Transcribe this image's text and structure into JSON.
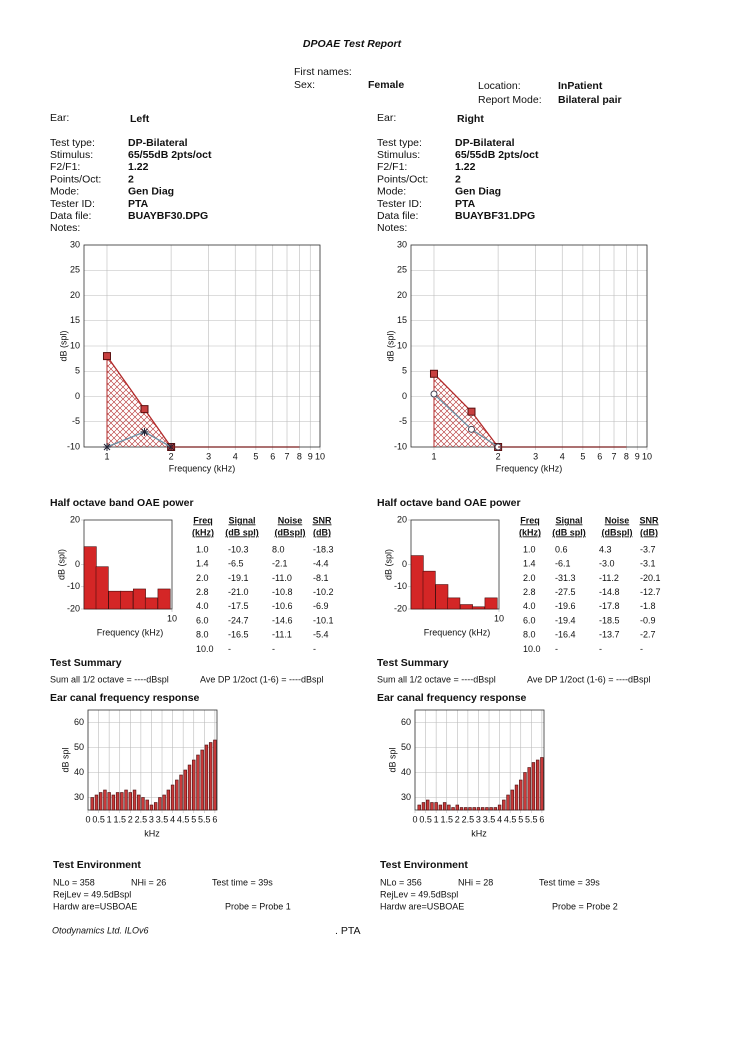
{
  "header": {
    "title": "DPOAE Test Report",
    "first_names_label": "First names:",
    "sex_label": "Sex:",
    "sex": "Female",
    "location_label": "Location:",
    "location": "InPatient",
    "report_mode_label": "Report Mode:",
    "report_mode": "Bilateral pair"
  },
  "ears": [
    {
      "ear_label": "Ear:",
      "ear": "Left",
      "ear_color": "#2e5a8a",
      "fields": [
        {
          "label": "Test type:",
          "value": "DP-Bilateral"
        },
        {
          "label": "Stimulus:",
          "value": "65/55dB  2pts/oct"
        },
        {
          "label": "F2/F1:",
          "value": "1.22"
        },
        {
          "label": "Points/Oct:",
          "value": "2"
        },
        {
          "label": "Mode:",
          "value": "Gen Diag"
        },
        {
          "label": "Tester ID:",
          "value": "PTA"
        },
        {
          "label": "Data file:",
          "value": "BUAYBF30.DPG"
        }
      ],
      "notes_label": "Notes:",
      "dpgram": {
        "type": "line",
        "x_label": "Frequency (kHz)",
        "y_label": "dB (spl)",
        "log_x": true,
        "grid": true,
        "xlim": [
          0.78,
          10
        ],
        "xticks": [
          1,
          2,
          3,
          4,
          5,
          6,
          7,
          8,
          9,
          10
        ],
        "ylim": [
          -10,
          30
        ],
        "yticks": [
          -10,
          -5,
          0,
          5,
          10,
          15,
          20,
          25,
          30
        ],
        "series": [
          {
            "color": "#b22a2a",
            "fill": "hatch",
            "marker": "square",
            "x": [
              1,
              1.5,
              2
            ],
            "values": [
              8,
              -2.5,
              -10
            ]
          },
          {
            "color": "#6d8fa3",
            "marker": "asterisk",
            "x": [
              1,
              1.5,
              2
            ],
            "values": [
              -10,
              -7,
              -10
            ]
          },
          {
            "color": "#7a1c1c",
            "marker": "none",
            "x": [
              2,
              8
            ],
            "values": [
              -10,
              -10
            ]
          }
        ]
      },
      "half_octave": {
        "title": "Half octave band OAE power",
        "chart": {
          "type": "bar",
          "x_label": "Frequency (kHz)",
          "y_label": "dB (spl)",
          "log_x": true,
          "color": "#d42626",
          "xlim": [
            0.84,
            10
          ],
          "xticks": [
            10
          ],
          "ylim": [
            -20,
            20
          ],
          "yticks": [
            -20,
            -10,
            0,
            20
          ],
          "x": [
            1,
            1.4,
            2,
            2.8,
            4,
            5.6,
            8
          ],
          "values": [
            8,
            -1,
            -12,
            -12,
            -11,
            -15,
            -11
          ]
        },
        "table": {
          "headers": [
            [
              "Freq",
              "(kHz)"
            ],
            [
              "Signal",
              "(dB spl)"
            ],
            [
              "Noise",
              "(dBspl)"
            ],
            [
              "SNR",
              "(dB)"
            ]
          ],
          "rows": [
            [
              "1.0",
              "-10.3",
              "8.0",
              "-18.3"
            ],
            [
              "1.4",
              "-6.5",
              "-2.1",
              "-4.4"
            ],
            [
              "2.0",
              "-19.1",
              "-11.0",
              "-8.1"
            ],
            [
              "2.8",
              "-21.0",
              "-10.8",
              "-10.2"
            ],
            [
              "4.0",
              "-17.5",
              "-10.6",
              "-6.9"
            ],
            [
              "6.0",
              "-24.7",
              "-14.6",
              "-10.1"
            ],
            [
              "8.0",
              "-16.5",
              "-11.1",
              "-5.4"
            ],
            [
              "10.0",
              "-",
              "-",
              "-"
            ]
          ]
        }
      },
      "summary": {
        "title": "Test Summary",
        "sum_all": "Sum all 1/2 octave = ----dBspl",
        "ave_dp": "Ave DP 1/2oct (1-6) = ----dBspl"
      },
      "ear_canal": {
        "title": "Ear canal frequency response",
        "chart": {
          "type": "bar",
          "x_label": "kHz",
          "y_label": "dB spl",
          "grid": true,
          "color": "#c83a3a",
          "xlim": [
            0,
            6.1
          ],
          "xticks": [
            0,
            0.5,
            1,
            1.5,
            2,
            2.5,
            3,
            3.5,
            4,
            4.5,
            5,
            5.5,
            6
          ],
          "ylim": [
            25,
            65
          ],
          "yticks": [
            30,
            40,
            50,
            60
          ],
          "x": [
            0.2,
            0.4,
            0.6,
            0.8,
            1.0,
            1.2,
            1.4,
            1.6,
            1.8,
            2.0,
            2.2,
            2.4,
            2.6,
            2.8,
            3.0,
            3.2,
            3.4,
            3.6,
            3.8,
            4.0,
            4.2,
            4.4,
            4.6,
            4.8,
            5.0,
            5.2,
            5.4,
            5.6,
            5.8,
            6.0
          ],
          "values": [
            30,
            31,
            32,
            33,
            32,
            31,
            32,
            32,
            33,
            32,
            33,
            31,
            30,
            29,
            27,
            28,
            30,
            31,
            33,
            35,
            37,
            39,
            41,
            43,
            45,
            47,
            49,
            51,
            52,
            53
          ]
        }
      },
      "environment": {
        "title": "Test Environment",
        "nlo": "NLo =  358",
        "nhi": "NHi =   26",
        "test_time": "Test time = 39s",
        "rejlev": "RejLev =  49.5dBspl",
        "hardware": "Hardw are=USBOAE",
        "probe": "Probe =  Probe 1"
      }
    },
    {
      "ear_label": "Ear:",
      "ear": "Right",
      "ear_color": "#a83232",
      "fields": [
        {
          "label": "Test type:",
          "value": "DP-Bilateral"
        },
        {
          "label": "Stimulus:",
          "value": "65/55dB  2pts/oct"
        },
        {
          "label": "F2/F1:",
          "value": "1.22"
        },
        {
          "label": "Points/Oct:",
          "value": "2"
        },
        {
          "label": "Mode:",
          "value": "Gen Diag"
        },
        {
          "label": "Tester ID:",
          "value": "PTA"
        },
        {
          "label": "Data file:",
          "value": "BUAYBF31.DPG"
        }
      ],
      "notes_label": "Notes:",
      "dpgram": {
        "type": "line",
        "x_label": "Frequency (kHz)",
        "y_label": "dB (spl)",
        "log_x": true,
        "grid": true,
        "xlim": [
          0.78,
          10
        ],
        "xticks": [
          1,
          2,
          3,
          4,
          5,
          6,
          7,
          8,
          9,
          10
        ],
        "ylim": [
          -10,
          30
        ],
        "yticks": [
          -10,
          -5,
          0,
          5,
          10,
          15,
          20,
          25,
          30
        ],
        "series": [
          {
            "color": "#b22a2a",
            "fill": "hatch",
            "marker": "square",
            "x": [
              1,
              1.5,
              2
            ],
            "values": [
              4.5,
              -3,
              -10
            ]
          },
          {
            "color": "#6d8fa3",
            "marker": "circle",
            "x": [
              1,
              1.5,
              2
            ],
            "values": [
              0.5,
              -6.5,
              -10
            ]
          },
          {
            "color": "#7a1c1c",
            "marker": "none",
            "x": [
              2,
              8
            ],
            "values": [
              -10,
              -10
            ]
          }
        ]
      },
      "half_octave": {
        "title": "Half octave band OAE power",
        "chart": {
          "type": "bar",
          "x_label": "Frequency (kHz)",
          "y_label": "dB (spl)",
          "log_x": true,
          "color": "#d42626",
          "xlim": [
            0.84,
            10
          ],
          "xticks": [
            10
          ],
          "ylim": [
            -20,
            20
          ],
          "yticks": [
            -20,
            -10,
            0,
            20
          ],
          "x": [
            1,
            1.4,
            2,
            2.8,
            4,
            5.6,
            8
          ],
          "values": [
            4,
            -3,
            -9,
            -15,
            -18,
            -19,
            -15
          ]
        },
        "table": {
          "headers": [
            [
              "Freq",
              "(kHz)"
            ],
            [
              "Signal",
              "(dB spl)"
            ],
            [
              "Noise",
              "(dBspl)"
            ],
            [
              "SNR",
              "(dB)"
            ]
          ],
          "rows": [
            [
              "1.0",
              "0.6",
              "4.3",
              "-3.7"
            ],
            [
              "1.4",
              "-6.1",
              "-3.0",
              "-3.1"
            ],
            [
              "2.0",
              "-31.3",
              "-11.2",
              "-20.1"
            ],
            [
              "2.8",
              "-27.5",
              "-14.8",
              "-12.7"
            ],
            [
              "4.0",
              "-19.6",
              "-17.8",
              "-1.8"
            ],
            [
              "6.0",
              "-19.4",
              "-18.5",
              "-0.9"
            ],
            [
              "8.0",
              "-16.4",
              "-13.7",
              "-2.7"
            ],
            [
              "10.0",
              "-",
              "-",
              "-"
            ]
          ]
        }
      },
      "summary": {
        "title": "Test Summary",
        "sum_all": "Sum all 1/2 octave = ----dBspl",
        "ave_dp": "Ave DP 1/2oct (1-6) = ----dBspl"
      },
      "ear_canal": {
        "title": "Ear canal frequency response",
        "chart": {
          "type": "bar",
          "x_label": "kHz",
          "y_label": "dB spl",
          "grid": true,
          "color": "#c83a3a",
          "xlim": [
            0,
            6.1
          ],
          "xticks": [
            0,
            0.5,
            1,
            1.5,
            2,
            2.5,
            3,
            3.5,
            4,
            4.5,
            5,
            5.5,
            6
          ],
          "ylim": [
            25,
            65
          ],
          "yticks": [
            30,
            40,
            50,
            60
          ],
          "x": [
            0.2,
            0.4,
            0.6,
            0.8,
            1.0,
            1.2,
            1.4,
            1.6,
            1.8,
            2.0,
            2.2,
            2.4,
            2.6,
            2.8,
            3.0,
            3.2,
            3.4,
            3.6,
            3.8,
            4.0,
            4.2,
            4.4,
            4.6,
            4.8,
            5.0,
            5.2,
            5.4,
            5.6,
            5.8,
            6.0
          ],
          "values": [
            27,
            28,
            29,
            28,
            28,
            27,
            28,
            27,
            26,
            27,
            26,
            26,
            26,
            26,
            26,
            26,
            26,
            26,
            26,
            27,
            29,
            31,
            33,
            35,
            37,
            40,
            42,
            44,
            45,
            46
          ]
        }
      },
      "environment": {
        "title": "Test Environment",
        "nlo": "NLo =  356",
        "nhi": "NHi =   28",
        "test_time": "Test time = 39s",
        "rejlev": "RejLev =  49.5dBspl",
        "hardware": "Hardw are=USBOAE",
        "probe": "Probe =  Probe 2"
      }
    }
  ],
  "footer": {
    "left": "Otodynamics Ltd. ILOv6",
    "center": ". PTA"
  }
}
